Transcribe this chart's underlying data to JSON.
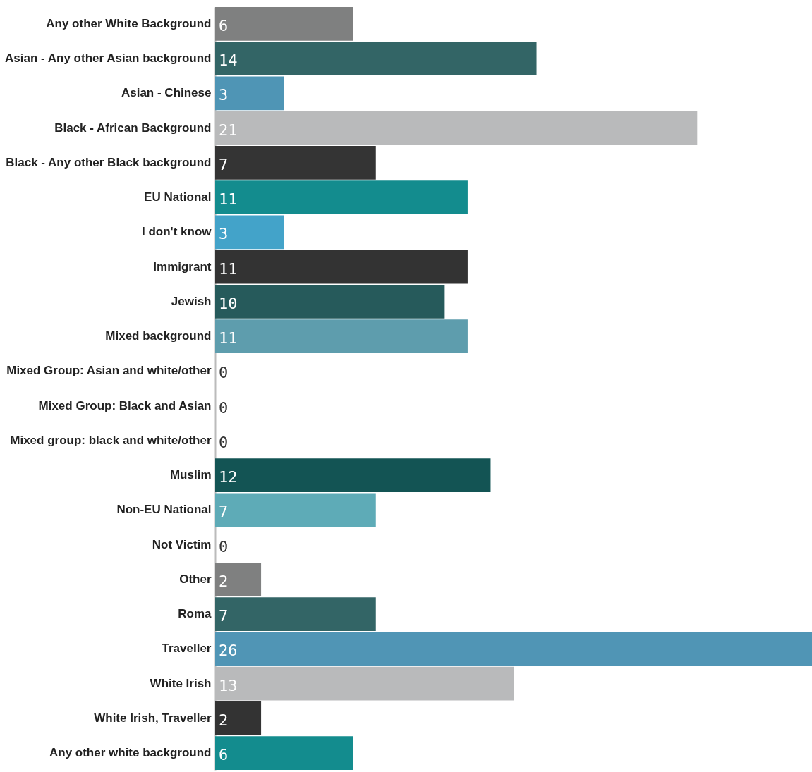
{
  "chart_data": {
    "type": "bar",
    "orientation": "horizontal",
    "data_labels": true,
    "grid": false,
    "categories": [
      "Any other White Background",
      "Asian - Any other Asian background",
      "Asian - Chinese",
      "Black - African Background",
      "Black - Any other Black background",
      "EU National",
      "I don't know",
      "Immigrant",
      "Jewish",
      "Mixed background",
      "Mixed Group: Asian and white/other",
      "Mixed Group: Black and Asian",
      "Mixed group: black and white/other",
      "Muslim",
      "Non-EU National",
      "Not Victim",
      "Other",
      "Roma",
      "Traveller",
      "White Irish",
      "White Irish, Traveller",
      "Any other white background"
    ],
    "values": [
      6,
      14,
      3,
      21,
      7,
      11,
      3,
      11,
      10,
      11,
      0,
      0,
      0,
      12,
      7,
      0,
      2,
      7,
      26,
      13,
      2,
      6
    ],
    "colors": [
      "#7f8080",
      "#336566",
      "#4f95b5",
      "#b9babb",
      "#343434",
      "#138c8e",
      "#43a3c9",
      "#333333",
      "#265a5b",
      "#5e9dad",
      "#7f8080",
      "#7f8080",
      "#7f8080",
      "#135454",
      "#5eabb7",
      "#7f8080",
      "#7f8080",
      "#336566",
      "#5095b5",
      "#b9babb",
      "#333333",
      "#138c8e"
    ],
    "xlim": [
      0,
      26
    ]
  }
}
